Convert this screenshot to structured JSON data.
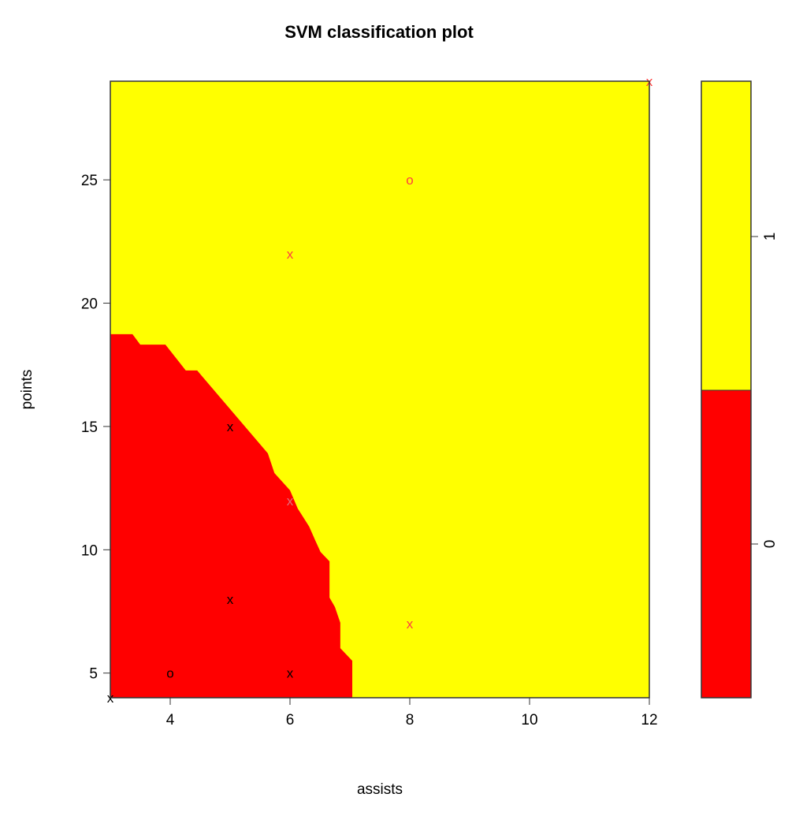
{
  "chart_data": {
    "type": "heatmap",
    "title": "SVM classification plot",
    "xlabel": "assists",
    "ylabel": "points",
    "xlim": [
      3,
      12
    ],
    "ylim": [
      4,
      29
    ],
    "xticks": [
      4,
      6,
      8,
      10,
      12
    ],
    "yticks": [
      5,
      10,
      15,
      20,
      25
    ],
    "classes": [
      {
        "label": "0",
        "color": "#ff0000"
      },
      {
        "label": "1",
        "color": "#ffff00"
      }
    ],
    "class0_region_boundary": [
      [
        3,
        18.74
      ],
      [
        3.37,
        18.74
      ],
      [
        3.5,
        18.32
      ],
      [
        3.92,
        18.32
      ],
      [
        4.26,
        17.27
      ],
      [
        4.45,
        17.27
      ],
      [
        5.63,
        13.91
      ],
      [
        5.74,
        13.11
      ],
      [
        6.0,
        12.41
      ],
      [
        6.13,
        11.67
      ],
      [
        6.32,
        10.94
      ],
      [
        6.42,
        10.39
      ],
      [
        6.51,
        9.91
      ],
      [
        6.66,
        9.53
      ],
      [
        6.66,
        8.06
      ],
      [
        6.75,
        7.68
      ],
      [
        6.84,
        7.04
      ],
      [
        6.84,
        6.01
      ],
      [
        7.04,
        5.5
      ],
      [
        7.04,
        4
      ]
    ],
    "points": [
      {
        "x": 5,
        "y": 15,
        "symbol": "x",
        "color": "#000000"
      },
      {
        "x": 6,
        "y": 12,
        "symbol": "x",
        "color": "#e07080"
      },
      {
        "x": 5,
        "y": 8,
        "symbol": "x",
        "color": "#000000"
      },
      {
        "x": 4,
        "y": 5,
        "symbol": "o",
        "color": "#000000"
      },
      {
        "x": 6,
        "y": 5,
        "symbol": "x",
        "color": "#000000"
      },
      {
        "x": 8,
        "y": 7,
        "symbol": "x",
        "color": "#ff4040"
      },
      {
        "x": 6,
        "y": 22,
        "symbol": "x",
        "color": "#ff4040"
      },
      {
        "x": 8,
        "y": 25,
        "symbol": "o",
        "color": "#ff4040"
      },
      {
        "x": 12,
        "y": 29,
        "symbol": "x",
        "color": "#ff4040"
      },
      {
        "x": 3,
        "y": 4,
        "symbol": "x",
        "color": "#000000"
      }
    ],
    "legend": {
      "placement": "right",
      "labels": [
        "0",
        "1"
      ]
    }
  }
}
